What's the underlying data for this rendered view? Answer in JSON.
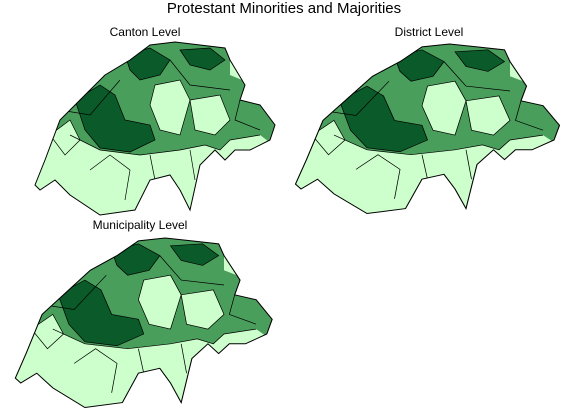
{
  "title": "Protestant Minorities and Majorities",
  "panels": [
    {
      "label": "Canton Level"
    },
    {
      "label": "District Level"
    },
    {
      "label": "Municipality Level"
    }
  ]
}
